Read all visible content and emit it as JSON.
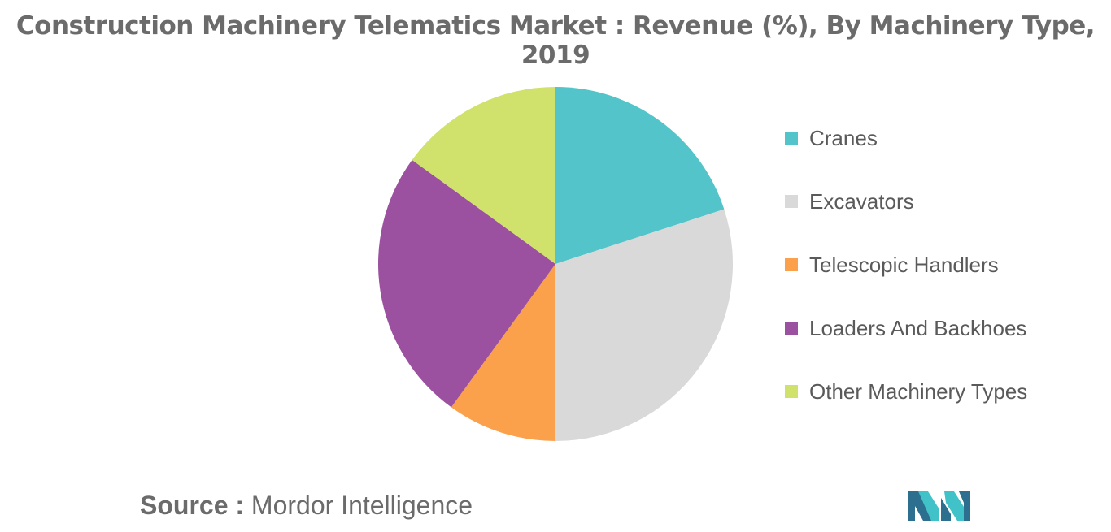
{
  "chart_data": {
    "type": "pie",
    "title": "Construction Machinery Telematics Market : Revenue (%), By Machinery Type, 2019",
    "categories": [
      "Cranes",
      "Excavators",
      "Telescopic Handlers",
      "Loaders And Backhoes",
      "Other Machinery Types"
    ],
    "values": [
      20,
      30,
      10,
      25,
      15
    ],
    "colors": [
      "#52c4ca",
      "#d9d9d9",
      "#fba04b",
      "#9b51a0",
      "#d0e26b"
    ],
    "legend_position": "right"
  },
  "source": {
    "label": "Source :",
    "text": "Mordor Intelligence"
  },
  "logo": {
    "icon": "mordor-intelligence-logo",
    "colors": [
      "#2c6f8e",
      "#41c2c8"
    ]
  }
}
